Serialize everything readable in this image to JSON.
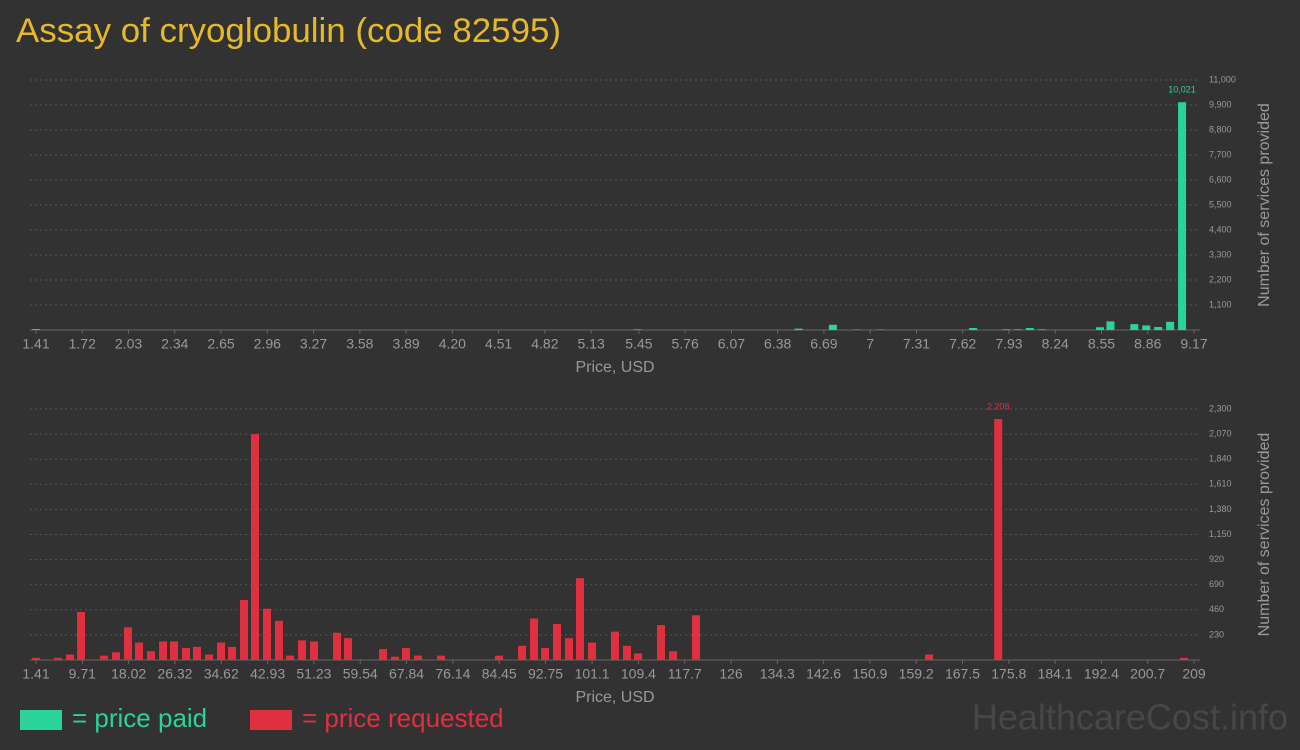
{
  "title": "Assay of cryoglobulin (code 82595)",
  "watermark": "HealthcareCost.info",
  "chart_data": [
    {
      "type": "bar",
      "xlabel": "Price, USD",
      "ylabel": "Number of services provided",
      "grid": true,
      "x": [
        1.41,
        5.44,
        6.52,
        6.75,
        6.91,
        7.07,
        7.69,
        7.91,
        7.99,
        8.07,
        8.15,
        8.54,
        8.61,
        8.77,
        8.85,
        8.93,
        9.01,
        9.09
      ],
      "series": [
        {
          "name": "= price paid",
          "color": "#2ad39a",
          "values": [
            40,
            30,
            60,
            230,
            20,
            20,
            90,
            30,
            30,
            90,
            30,
            120,
            380,
            260,
            200,
            130,
            360,
            10021
          ],
          "value_labels": [
            null,
            null,
            null,
            null,
            null,
            null,
            null,
            null,
            null,
            null,
            null,
            null,
            null,
            null,
            null,
            null,
            null,
            "10,021"
          ]
        }
      ],
      "xlim": [
        1.41,
        9.17
      ],
      "xticks": [
        1.41,
        1.72,
        2.03,
        2.34,
        2.65,
        2.96,
        3.27,
        3.58,
        3.89,
        {
          "value": 4.2,
          "label": "4.20"
        },
        4.51,
        4.82,
        5.13,
        5.45,
        5.76,
        6.07,
        6.38,
        6.69,
        7,
        7.31,
        7.62,
        7.93,
        8.24,
        8.55,
        8.86,
        9.17
      ],
      "ylim": [
        0,
        11000
      ],
      "yticks": [
        {
          "value": 1100,
          "label": "1,100"
        },
        {
          "value": 2200,
          "label": "2,200"
        },
        {
          "value": 3300,
          "label": "3,300"
        },
        {
          "value": 4400,
          "label": "4,400"
        },
        {
          "value": 5500,
          "label": "5,500"
        },
        {
          "value": 6600,
          "label": "6,600"
        },
        {
          "value": 7700,
          "label": "7,700"
        },
        {
          "value": 8800,
          "label": "8,800"
        },
        {
          "value": 9900,
          "label": "9,900"
        },
        {
          "value": 11000,
          "label": "11,000"
        }
      ]
    },
    {
      "type": "bar",
      "xlabel": "Price, USD",
      "ylabel": "Number of services provided",
      "grid": true,
      "x": [
        1.41,
        5.35,
        7.51,
        9.48,
        13.6,
        15.75,
        17.9,
        19.88,
        22.03,
        24.18,
        26.15,
        28.3,
        30.27,
        32.43,
        34.58,
        36.55,
        38.7,
        40.67,
        42.82,
        44.97,
        46.95,
        49.1,
        51.25,
        55.37,
        57.34,
        63.62,
        65.77,
        67.74,
        69.89,
        74.02,
        84.41,
        88.54,
        90.69,
        92.66,
        94.81,
        96.96,
        98.93,
        101.08,
        105.2,
        107.35,
        109.33,
        113.45,
        115.6,
        119.72,
        161.5,
        173.9,
        207.2
      ],
      "series": [
        {
          "name": "= price requested",
          "color": "#e0303f",
          "values": [
            20,
            20,
            50,
            440,
            40,
            70,
            300,
            160,
            80,
            170,
            170,
            110,
            120,
            50,
            160,
            120,
            550,
            2070,
            470,
            360,
            40,
            180,
            170,
            250,
            200,
            100,
            30,
            110,
            40,
            40,
            40,
            130,
            380,
            110,
            330,
            200,
            750,
            160,
            260,
            130,
            60,
            320,
            80,
            410,
            50,
            2208,
            20
          ],
          "value_labels": [
            null,
            null,
            null,
            null,
            null,
            null,
            null,
            null,
            null,
            null,
            null,
            null,
            null,
            null,
            null,
            null,
            null,
            null,
            null,
            null,
            null,
            null,
            null,
            null,
            null,
            null,
            null,
            null,
            null,
            null,
            null,
            null,
            null,
            null,
            null,
            null,
            null,
            null,
            null,
            null,
            null,
            null,
            null,
            null,
            null,
            "2,208",
            null
          ]
        }
      ],
      "xlim": [
        1.41,
        209
      ],
      "xticks": [
        1.41,
        9.71,
        18.02,
        26.32,
        34.62,
        42.93,
        51.23,
        59.54,
        67.84,
        76.14,
        84.45,
        92.75,
        101.1,
        109.4,
        117.7,
        126,
        134.3,
        142.6,
        150.9,
        159.2,
        167.5,
        175.8,
        184.1,
        192.4,
        200.7,
        209
      ],
      "ylim": [
        0,
        2300
      ],
      "yticks": [
        230,
        460,
        690,
        920,
        {
          "value": 1150,
          "label": "1,150"
        },
        {
          "value": 1380,
          "label": "1,380"
        },
        {
          "value": 1610,
          "label": "1,610"
        },
        {
          "value": 1840,
          "label": "1,840"
        },
        {
          "value": 2070,
          "label": "2,070"
        },
        {
          "value": 2300,
          "label": "2,300"
        }
      ]
    }
  ]
}
